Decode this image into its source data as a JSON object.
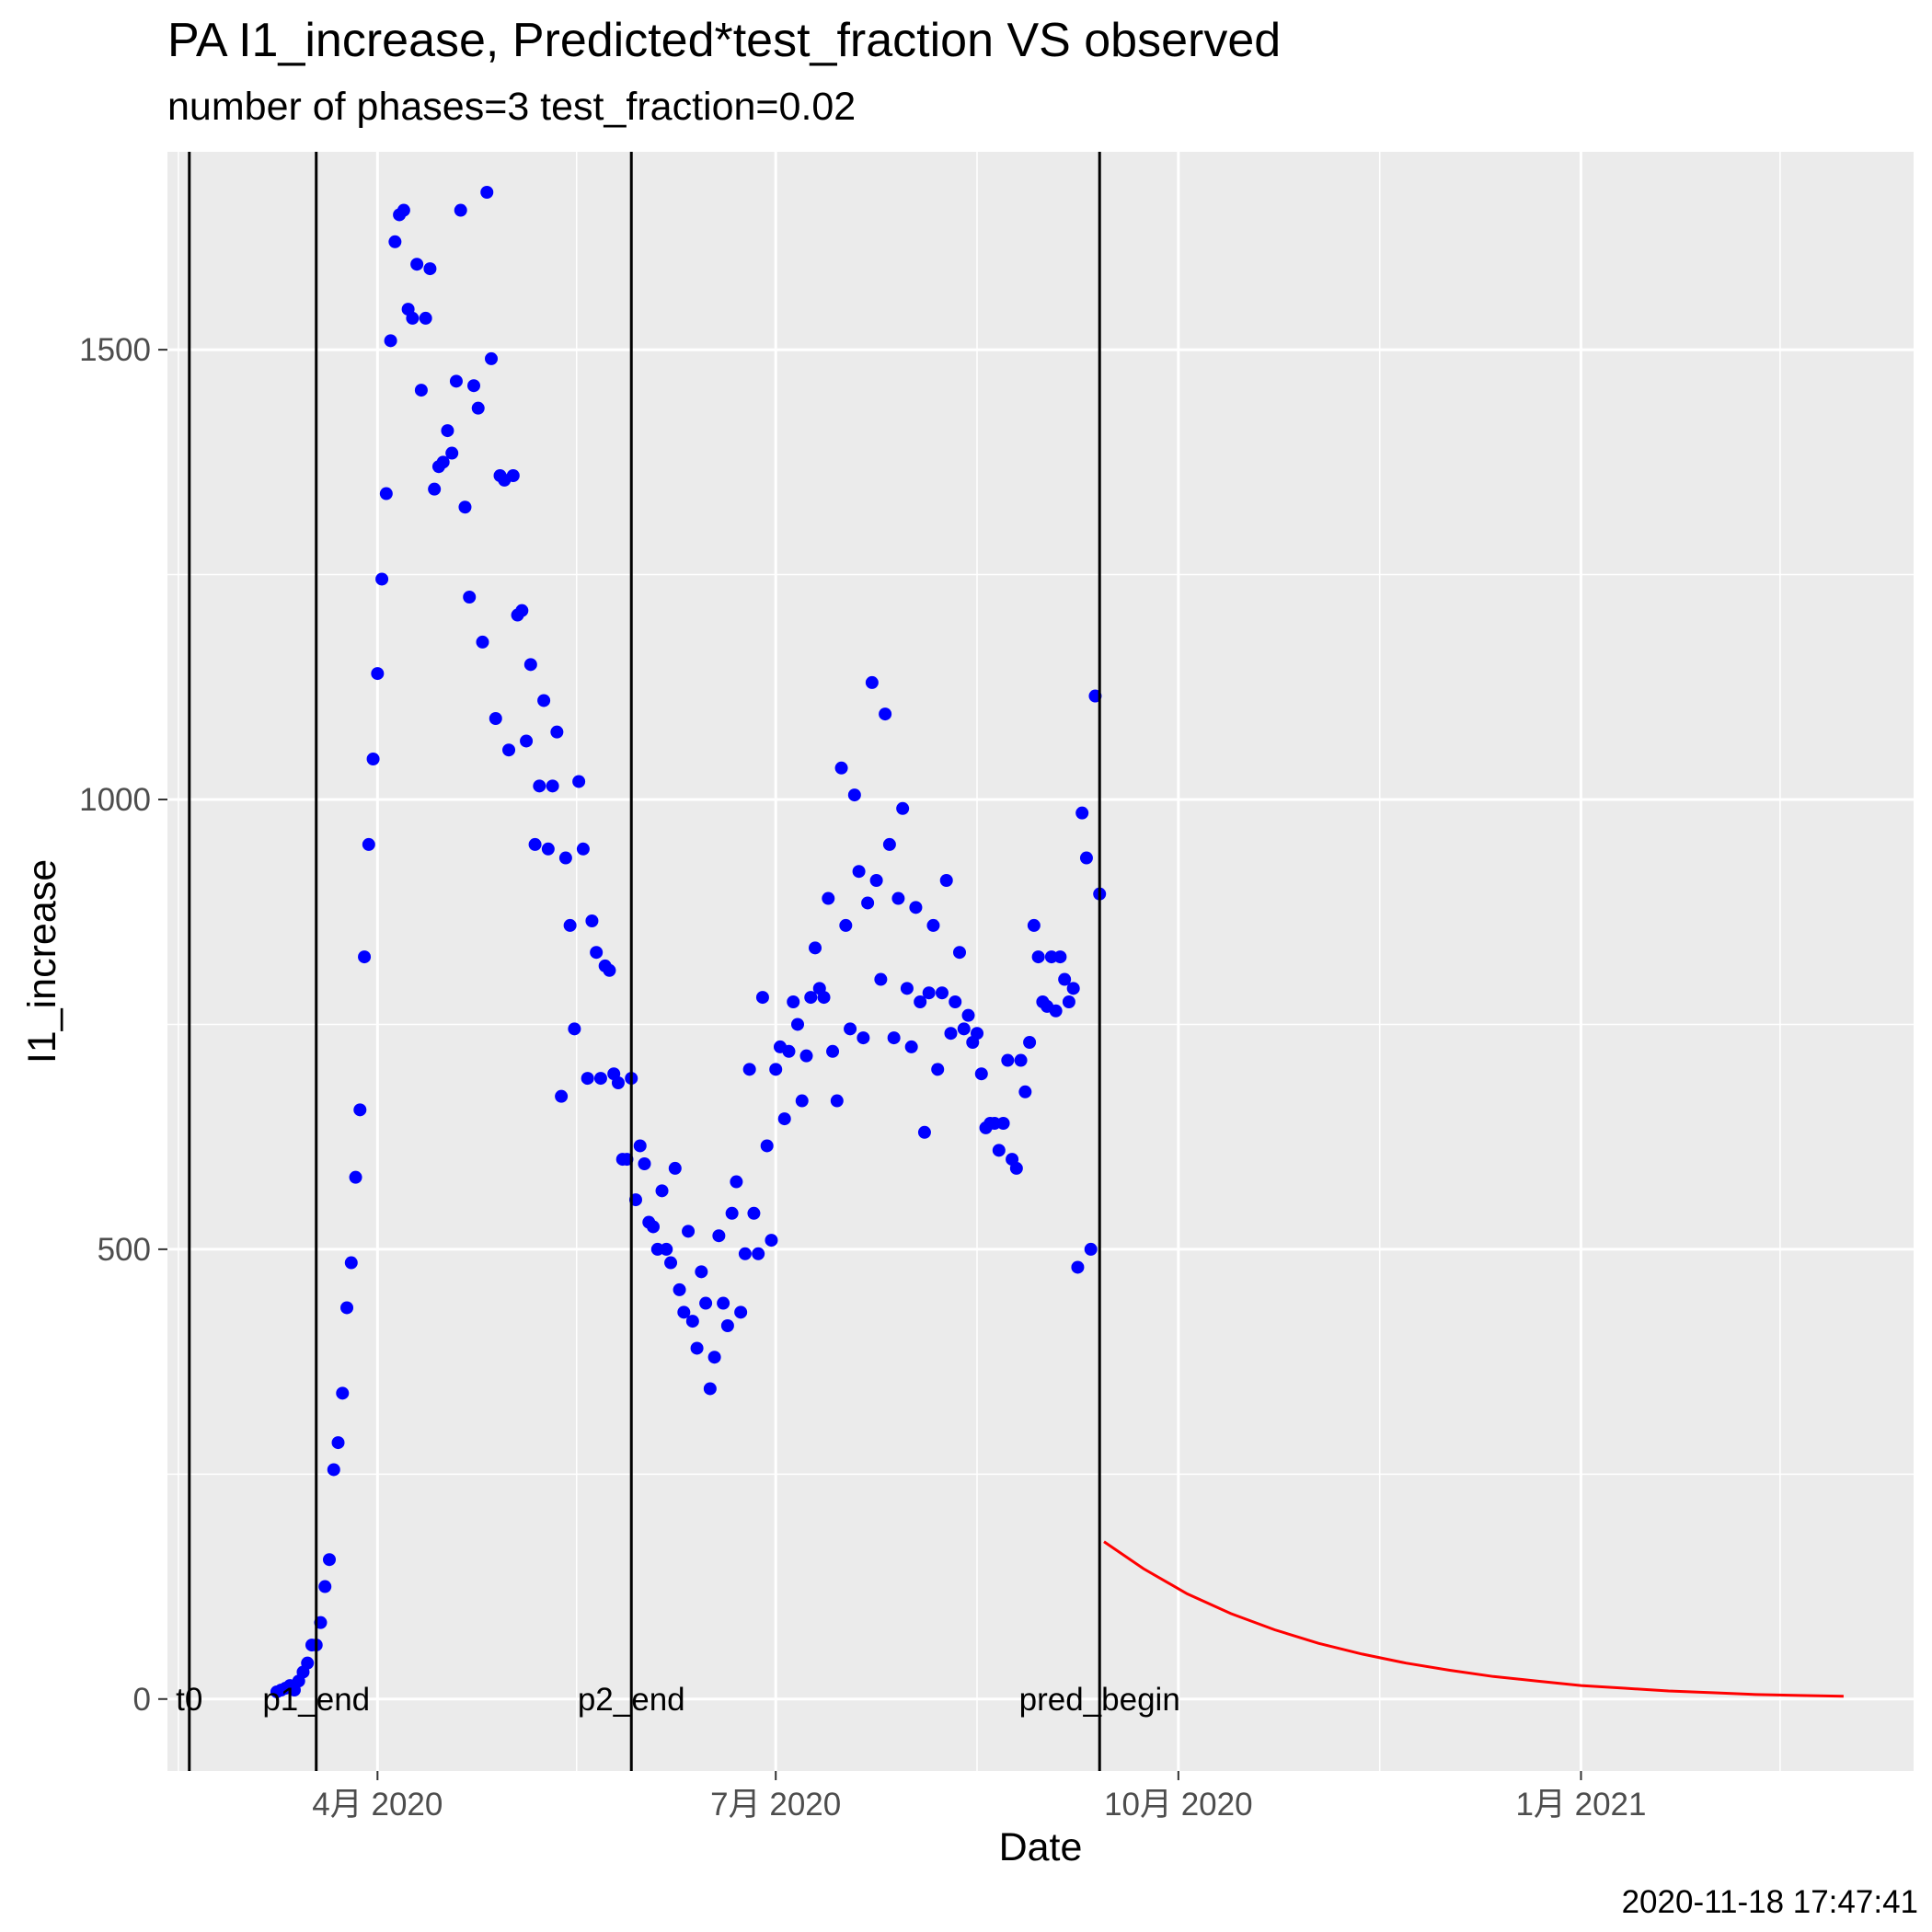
{
  "chart_data": {
    "type": "scatter",
    "title": "PA I1_increase, Predicted*test_fraction VS observed",
    "subtitle": "number of phases=3   test_fraction=0.02",
    "xlabel": "Date",
    "ylabel": "I1_increase",
    "caption": "2020-11-18 17:47:41",
    "xlim": [
      "2020-02-13",
      "2021-03-18"
    ],
    "ylim": [
      -80,
      1720
    ],
    "grid": true,
    "x_ticks": [
      {
        "date": "2020-04-01",
        "label": "4月 2020"
      },
      {
        "date": "2020-07-01",
        "label": "7月 2020"
      },
      {
        "date": "2020-10-01",
        "label": "10月 2020"
      },
      {
        "date": "2021-01-01",
        "label": "1月 2021"
      }
    ],
    "y_ticks": [
      0,
      500,
      1000,
      1500
    ],
    "vlines": [
      {
        "date": "2020-02-18",
        "label": "t0"
      },
      {
        "date": "2020-03-18",
        "label": "p1_end"
      },
      {
        "date": "2020-05-29",
        "label": "p2_end"
      },
      {
        "date": "2020-09-13",
        "label": "pred_begin"
      }
    ],
    "series": [
      {
        "kind": "points",
        "color": "#0000ff",
        "points": [
          [
            "2020-03-09",
            8
          ],
          [
            "2020-03-10",
            10
          ],
          [
            "2020-03-11",
            12
          ],
          [
            "2020-03-12",
            15
          ],
          [
            "2020-03-13",
            10
          ],
          [
            "2020-03-14",
            20
          ],
          [
            "2020-03-15",
            30
          ],
          [
            "2020-03-16",
            40
          ],
          [
            "2020-03-17",
            60
          ],
          [
            "2020-03-18",
            60
          ],
          [
            "2020-03-19",
            85
          ],
          [
            "2020-03-20",
            125
          ],
          [
            "2020-03-21",
            155
          ],
          [
            "2020-03-22",
            255
          ],
          [
            "2020-03-23",
            285
          ],
          [
            "2020-03-24",
            340
          ],
          [
            "2020-03-25",
            435
          ],
          [
            "2020-03-26",
            485
          ],
          [
            "2020-03-27",
            580
          ],
          [
            "2020-03-28",
            655
          ],
          [
            "2020-03-29",
            825
          ],
          [
            "2020-03-30",
            950
          ],
          [
            "2020-03-31",
            1045
          ],
          [
            "2020-04-01",
            1140
          ],
          [
            "2020-04-02",
            1245
          ],
          [
            "2020-04-03",
            1340
          ],
          [
            "2020-04-04",
            1510
          ],
          [
            "2020-04-05",
            1620
          ],
          [
            "2020-04-06",
            1650
          ],
          [
            "2020-04-07",
            1655
          ],
          [
            "2020-04-08",
            1545
          ],
          [
            "2020-04-09",
            1535
          ],
          [
            "2020-04-10",
            1595
          ],
          [
            "2020-04-11",
            1455
          ],
          [
            "2020-04-12",
            1535
          ],
          [
            "2020-04-13",
            1590
          ],
          [
            "2020-04-14",
            1345
          ],
          [
            "2020-04-15",
            1370
          ],
          [
            "2020-04-16",
            1375
          ],
          [
            "2020-04-17",
            1410
          ],
          [
            "2020-04-18",
            1385
          ],
          [
            "2020-04-19",
            1465
          ],
          [
            "2020-04-20",
            1655
          ],
          [
            "2020-04-21",
            1325
          ],
          [
            "2020-04-22",
            1225
          ],
          [
            "2020-04-23",
            1460
          ],
          [
            "2020-04-24",
            1435
          ],
          [
            "2020-04-25",
            1175
          ],
          [
            "2020-04-26",
            1675
          ],
          [
            "2020-04-27",
            1490
          ],
          [
            "2020-04-28",
            1090
          ],
          [
            "2020-04-29",
            1360
          ],
          [
            "2020-04-30",
            1355
          ],
          [
            "2020-05-01",
            1055
          ],
          [
            "2020-05-02",
            1360
          ],
          [
            "2020-05-03",
            1205
          ],
          [
            "2020-05-04",
            1210
          ],
          [
            "2020-05-05",
            1065
          ],
          [
            "2020-05-06",
            1150
          ],
          [
            "2020-05-07",
            950
          ],
          [
            "2020-05-08",
            1015
          ],
          [
            "2020-05-09",
            1110
          ],
          [
            "2020-05-10",
            945
          ],
          [
            "2020-05-11",
            1015
          ],
          [
            "2020-05-12",
            1075
          ],
          [
            "2020-05-13",
            670
          ],
          [
            "2020-05-14",
            935
          ],
          [
            "2020-05-15",
            860
          ],
          [
            "2020-05-16",
            745
          ],
          [
            "2020-05-17",
            1020
          ],
          [
            "2020-05-18",
            945
          ],
          [
            "2020-05-19",
            690
          ],
          [
            "2020-05-20",
            865
          ],
          [
            "2020-05-21",
            830
          ],
          [
            "2020-05-22",
            690
          ],
          [
            "2020-05-23",
            815
          ],
          [
            "2020-05-24",
            810
          ],
          [
            "2020-05-25",
            695
          ],
          [
            "2020-05-26",
            685
          ],
          [
            "2020-05-27",
            600
          ],
          [
            "2020-05-28",
            600
          ],
          [
            "2020-05-29",
            690
          ],
          [
            "2020-05-30",
            555
          ],
          [
            "2020-05-31",
            615
          ],
          [
            "2020-06-01",
            595
          ],
          [
            "2020-06-02",
            530
          ],
          [
            "2020-06-03",
            525
          ],
          [
            "2020-06-04",
            500
          ],
          [
            "2020-06-05",
            565
          ],
          [
            "2020-06-06",
            500
          ],
          [
            "2020-06-07",
            485
          ],
          [
            "2020-06-08",
            590
          ],
          [
            "2020-06-09",
            455
          ],
          [
            "2020-06-10",
            430
          ],
          [
            "2020-06-11",
            520
          ],
          [
            "2020-06-12",
            420
          ],
          [
            "2020-06-13",
            390
          ],
          [
            "2020-06-14",
            475
          ],
          [
            "2020-06-15",
            440
          ],
          [
            "2020-06-16",
            345
          ],
          [
            "2020-06-17",
            380
          ],
          [
            "2020-06-18",
            515
          ],
          [
            "2020-06-19",
            440
          ],
          [
            "2020-06-20",
            415
          ],
          [
            "2020-06-21",
            540
          ],
          [
            "2020-06-22",
            575
          ],
          [
            "2020-06-23",
            430
          ],
          [
            "2020-06-24",
            495
          ],
          [
            "2020-06-25",
            700
          ],
          [
            "2020-06-26",
            540
          ],
          [
            "2020-06-27",
            495
          ],
          [
            "2020-06-28",
            780
          ],
          [
            "2020-06-29",
            615
          ],
          [
            "2020-06-30",
            510
          ],
          [
            "2020-07-01",
            700
          ],
          [
            "2020-07-02",
            725
          ],
          [
            "2020-07-03",
            645
          ],
          [
            "2020-07-04",
            720
          ],
          [
            "2020-07-05",
            775
          ],
          [
            "2020-07-06",
            750
          ],
          [
            "2020-07-07",
            665
          ],
          [
            "2020-07-08",
            715
          ],
          [
            "2020-07-09",
            780
          ],
          [
            "2020-07-10",
            835
          ],
          [
            "2020-07-11",
            790
          ],
          [
            "2020-07-12",
            780
          ],
          [
            "2020-07-13",
            890
          ],
          [
            "2020-07-14",
            720
          ],
          [
            "2020-07-15",
            665
          ],
          [
            "2020-07-16",
            1035
          ],
          [
            "2020-07-17",
            860
          ],
          [
            "2020-07-18",
            745
          ],
          [
            "2020-07-19",
            1005
          ],
          [
            "2020-07-20",
            920
          ],
          [
            "2020-07-21",
            735
          ],
          [
            "2020-07-22",
            885
          ],
          [
            "2020-07-23",
            1130
          ],
          [
            "2020-07-24",
            910
          ],
          [
            "2020-07-25",
            800
          ],
          [
            "2020-07-26",
            1095
          ],
          [
            "2020-07-27",
            950
          ],
          [
            "2020-07-28",
            735
          ],
          [
            "2020-07-29",
            890
          ],
          [
            "2020-07-30",
            990
          ],
          [
            "2020-07-31",
            790
          ],
          [
            "2020-08-01",
            725
          ],
          [
            "2020-08-02",
            880
          ],
          [
            "2020-08-03",
            775
          ],
          [
            "2020-08-04",
            630
          ],
          [
            "2020-08-05",
            785
          ],
          [
            "2020-08-06",
            860
          ],
          [
            "2020-08-07",
            700
          ],
          [
            "2020-08-08",
            785
          ],
          [
            "2020-08-09",
            910
          ],
          [
            "2020-08-10",
            740
          ],
          [
            "2020-08-11",
            775
          ],
          [
            "2020-08-12",
            830
          ],
          [
            "2020-08-13",
            745
          ],
          [
            "2020-08-14",
            760
          ],
          [
            "2020-08-15",
            730
          ],
          [
            "2020-08-16",
            740
          ],
          [
            "2020-08-17",
            695
          ],
          [
            "2020-08-18",
            635
          ],
          [
            "2020-08-19",
            640
          ],
          [
            "2020-08-20",
            640
          ],
          [
            "2020-08-21",
            610
          ],
          [
            "2020-08-22",
            640
          ],
          [
            "2020-08-23",
            710
          ],
          [
            "2020-08-24",
            600
          ],
          [
            "2020-08-25",
            590
          ],
          [
            "2020-08-26",
            710
          ],
          [
            "2020-08-27",
            675
          ],
          [
            "2020-08-28",
            730
          ],
          [
            "2020-08-29",
            860
          ],
          [
            "2020-08-30",
            825
          ],
          [
            "2020-08-31",
            775
          ],
          [
            "2020-09-01",
            770
          ],
          [
            "2020-09-02",
            825
          ],
          [
            "2020-09-03",
            765
          ],
          [
            "2020-09-04",
            825
          ],
          [
            "2020-09-05",
            800
          ],
          [
            "2020-09-06",
            775
          ],
          [
            "2020-09-07",
            790
          ],
          [
            "2020-09-08",
            480
          ],
          [
            "2020-09-09",
            985
          ],
          [
            "2020-09-10",
            935
          ],
          [
            "2020-09-11",
            500
          ],
          [
            "2020-09-12",
            1115
          ],
          [
            "2020-09-13",
            895
          ]
        ]
      },
      {
        "kind": "line",
        "color": "#ff0000",
        "points": [
          [
            "2020-09-14",
            175
          ],
          [
            "2020-09-23",
            145
          ],
          [
            "2020-10-03",
            117
          ],
          [
            "2020-10-13",
            95
          ],
          [
            "2020-10-23",
            77
          ],
          [
            "2020-11-02",
            62
          ],
          [
            "2020-11-12",
            50
          ],
          [
            "2020-11-22",
            40
          ],
          [
            "2020-12-02",
            32
          ],
          [
            "2020-12-12",
            25
          ],
          [
            "2020-12-22",
            20
          ],
          [
            "2021-01-01",
            15
          ],
          [
            "2021-01-11",
            12
          ],
          [
            "2021-01-21",
            9
          ],
          [
            "2021-01-31",
            7
          ],
          [
            "2021-02-10",
            5
          ],
          [
            "2021-02-20",
            4
          ],
          [
            "2021-03-02",
            3
          ],
          [
            "2021-03-02",
            3
          ]
        ]
      }
    ]
  }
}
